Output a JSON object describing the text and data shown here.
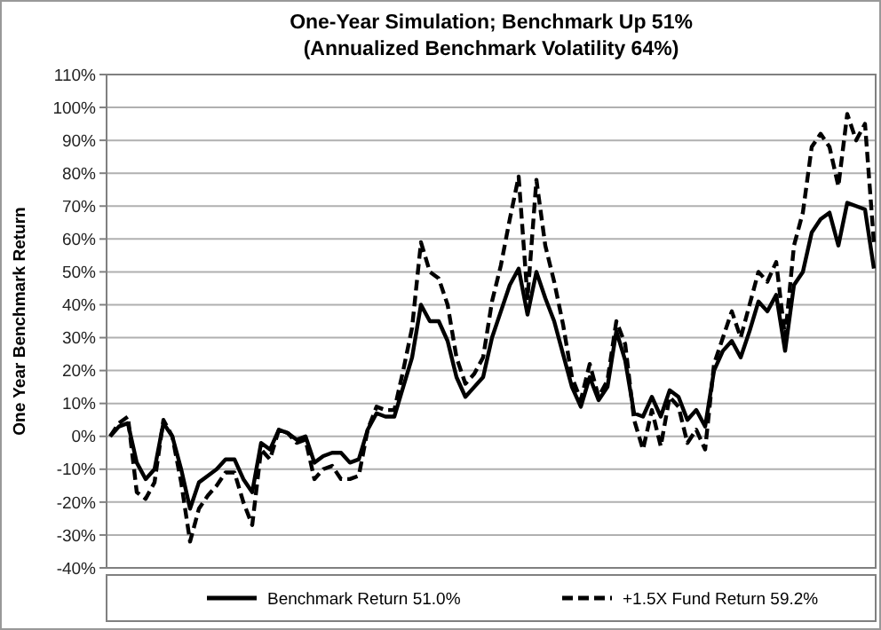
{
  "chart_data": {
    "type": "line",
    "title": "One-Year Simulation; Benchmark Up 51%",
    "subtitle": "(Annualized Benchmark Volatility 64%)",
    "ylabel": "One Year Benchmark Return",
    "categories": [
      null,
      null,
      null,
      null,
      null,
      null,
      null,
      null,
      null,
      null,
      null,
      null,
      null,
      null,
      null,
      null,
      null,
      null,
      null,
      null,
      null,
      null,
      null,
      null,
      null,
      null,
      null,
      null,
      null,
      null,
      null,
      null,
      null,
      null,
      null,
      null,
      null,
      null,
      null,
      null,
      null,
      null,
      null,
      null,
      null,
      null,
      null,
      null,
      null,
      null,
      null,
      null,
      null,
      null,
      null,
      null,
      null,
      null,
      null,
      null,
      null,
      null,
      null,
      null,
      null,
      null,
      null,
      null,
      null,
      null,
      null,
      null,
      null,
      null,
      null,
      null,
      null,
      null,
      null,
      null,
      null,
      null,
      null,
      null,
      null,
      null,
      null
    ],
    "ylim": [
      -40,
      110
    ],
    "yticks": [
      {
        "value": -40,
        "label": "-40%"
      },
      {
        "value": -30,
        "label": "-30%"
      },
      {
        "value": -20,
        "label": "-20%"
      },
      {
        "value": -10,
        "label": "-10%"
      },
      {
        "value": 0,
        "label": "0%"
      },
      {
        "value": 10,
        "label": "10%"
      },
      {
        "value": 20,
        "label": "20%"
      },
      {
        "value": 30,
        "label": "30%"
      },
      {
        "value": 40,
        "label": "40%"
      },
      {
        "value": 50,
        "label": "50%"
      },
      {
        "value": 60,
        "label": "60%"
      },
      {
        "value": 70,
        "label": "70%"
      },
      {
        "value": 80,
        "label": "80%"
      },
      {
        "value": 90,
        "label": "90%"
      },
      {
        "value": 100,
        "label": "100%"
      },
      {
        "value": 110,
        "label": "110%"
      }
    ],
    "grid": "y",
    "legend": "bottom",
    "tick_labels": "y",
    "series": [
      {
        "name": "Benchmark Return 51.0%",
        "color": "#000000",
        "line_style": "solid",
        "values": [
          0,
          3,
          4,
          -8,
          -13,
          -10,
          4,
          0,
          -10,
          -22,
          -14,
          -12,
          -10,
          -7,
          -7,
          -13,
          -17,
          -2,
          -4,
          2,
          1,
          -1,
          0,
          -8,
          -6,
          -5,
          -5,
          -8,
          -7,
          2,
          7,
          6,
          6,
          15,
          24,
          40,
          35,
          35,
          29,
          18,
          12,
          15,
          18,
          30,
          38,
          46,
          51,
          37,
          50,
          42,
          35,
          25,
          15,
          9,
          18,
          11,
          15,
          32,
          23,
          7,
          6,
          12,
          6,
          14,
          12,
          5,
          8,
          3,
          20,
          26,
          29,
          24,
          32,
          41,
          38,
          43,
          26,
          46,
          50,
          62,
          66,
          68,
          58,
          71,
          70,
          69,
          51
        ]
      },
      {
        "name": "+1.5X Fund Return 59.2%",
        "color": "#000000",
        "line_style": "dashed",
        "values": [
          0,
          4,
          6,
          -17,
          -19,
          -14,
          5,
          0,
          -14,
          -32,
          -22,
          -18,
          -15,
          -11,
          -11,
          -20,
          -27,
          -4,
          -7,
          2,
          1,
          -2,
          -1,
          -13,
          -10,
          -9,
          -13,
          -13,
          -12,
          2,
          9,
          8,
          8,
          20,
          33,
          59,
          50,
          48,
          40,
          24,
          16,
          19,
          24,
          41,
          52,
          66,
          79,
          42,
          78,
          58,
          47,
          34,
          18,
          11,
          22,
          12,
          17,
          35,
          28,
          5,
          -4,
          8,
          -3,
          12,
          9,
          -2,
          2,
          -4,
          22,
          30,
          38,
          30,
          40,
          50,
          47,
          53,
          30,
          58,
          68,
          88,
          92,
          88,
          76,
          98,
          90,
          95,
          59
        ]
      }
    ]
  }
}
